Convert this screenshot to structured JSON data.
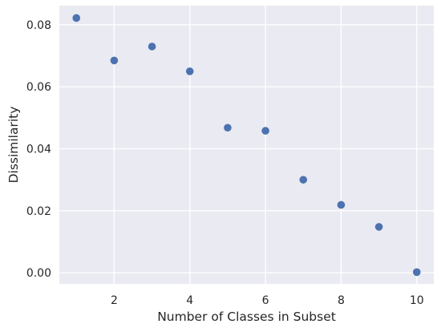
{
  "chart_data": {
    "type": "scatter",
    "title": "",
    "xlabel": "Number of Classes in Subset",
    "ylabel": "Dissimilarity",
    "x": [
      1,
      2,
      3,
      4,
      5,
      6,
      7,
      8,
      9,
      10
    ],
    "y": [
      0.0822,
      0.0685,
      0.073,
      0.065,
      0.0468,
      0.0458,
      0.03,
      0.0219,
      0.0148,
      0.0002
    ],
    "xlim": [
      0.55,
      10.45
    ],
    "ylim": [
      -0.0036,
      0.0862
    ],
    "xticks": [
      2,
      4,
      6,
      8,
      10
    ],
    "xtick_labels": [
      "2",
      "4",
      "6",
      "8",
      "10"
    ],
    "yticks": [
      0.0,
      0.02,
      0.04,
      0.06,
      0.08
    ],
    "ytick_labels": [
      "0.00",
      "0.02",
      "0.04",
      "0.06",
      "0.08"
    ],
    "grid": true,
    "legend": "none",
    "colors": {
      "background": "#eaeaf2",
      "grid": "#ffffff",
      "marker": "#4c72b0",
      "text": "#262626"
    }
  }
}
